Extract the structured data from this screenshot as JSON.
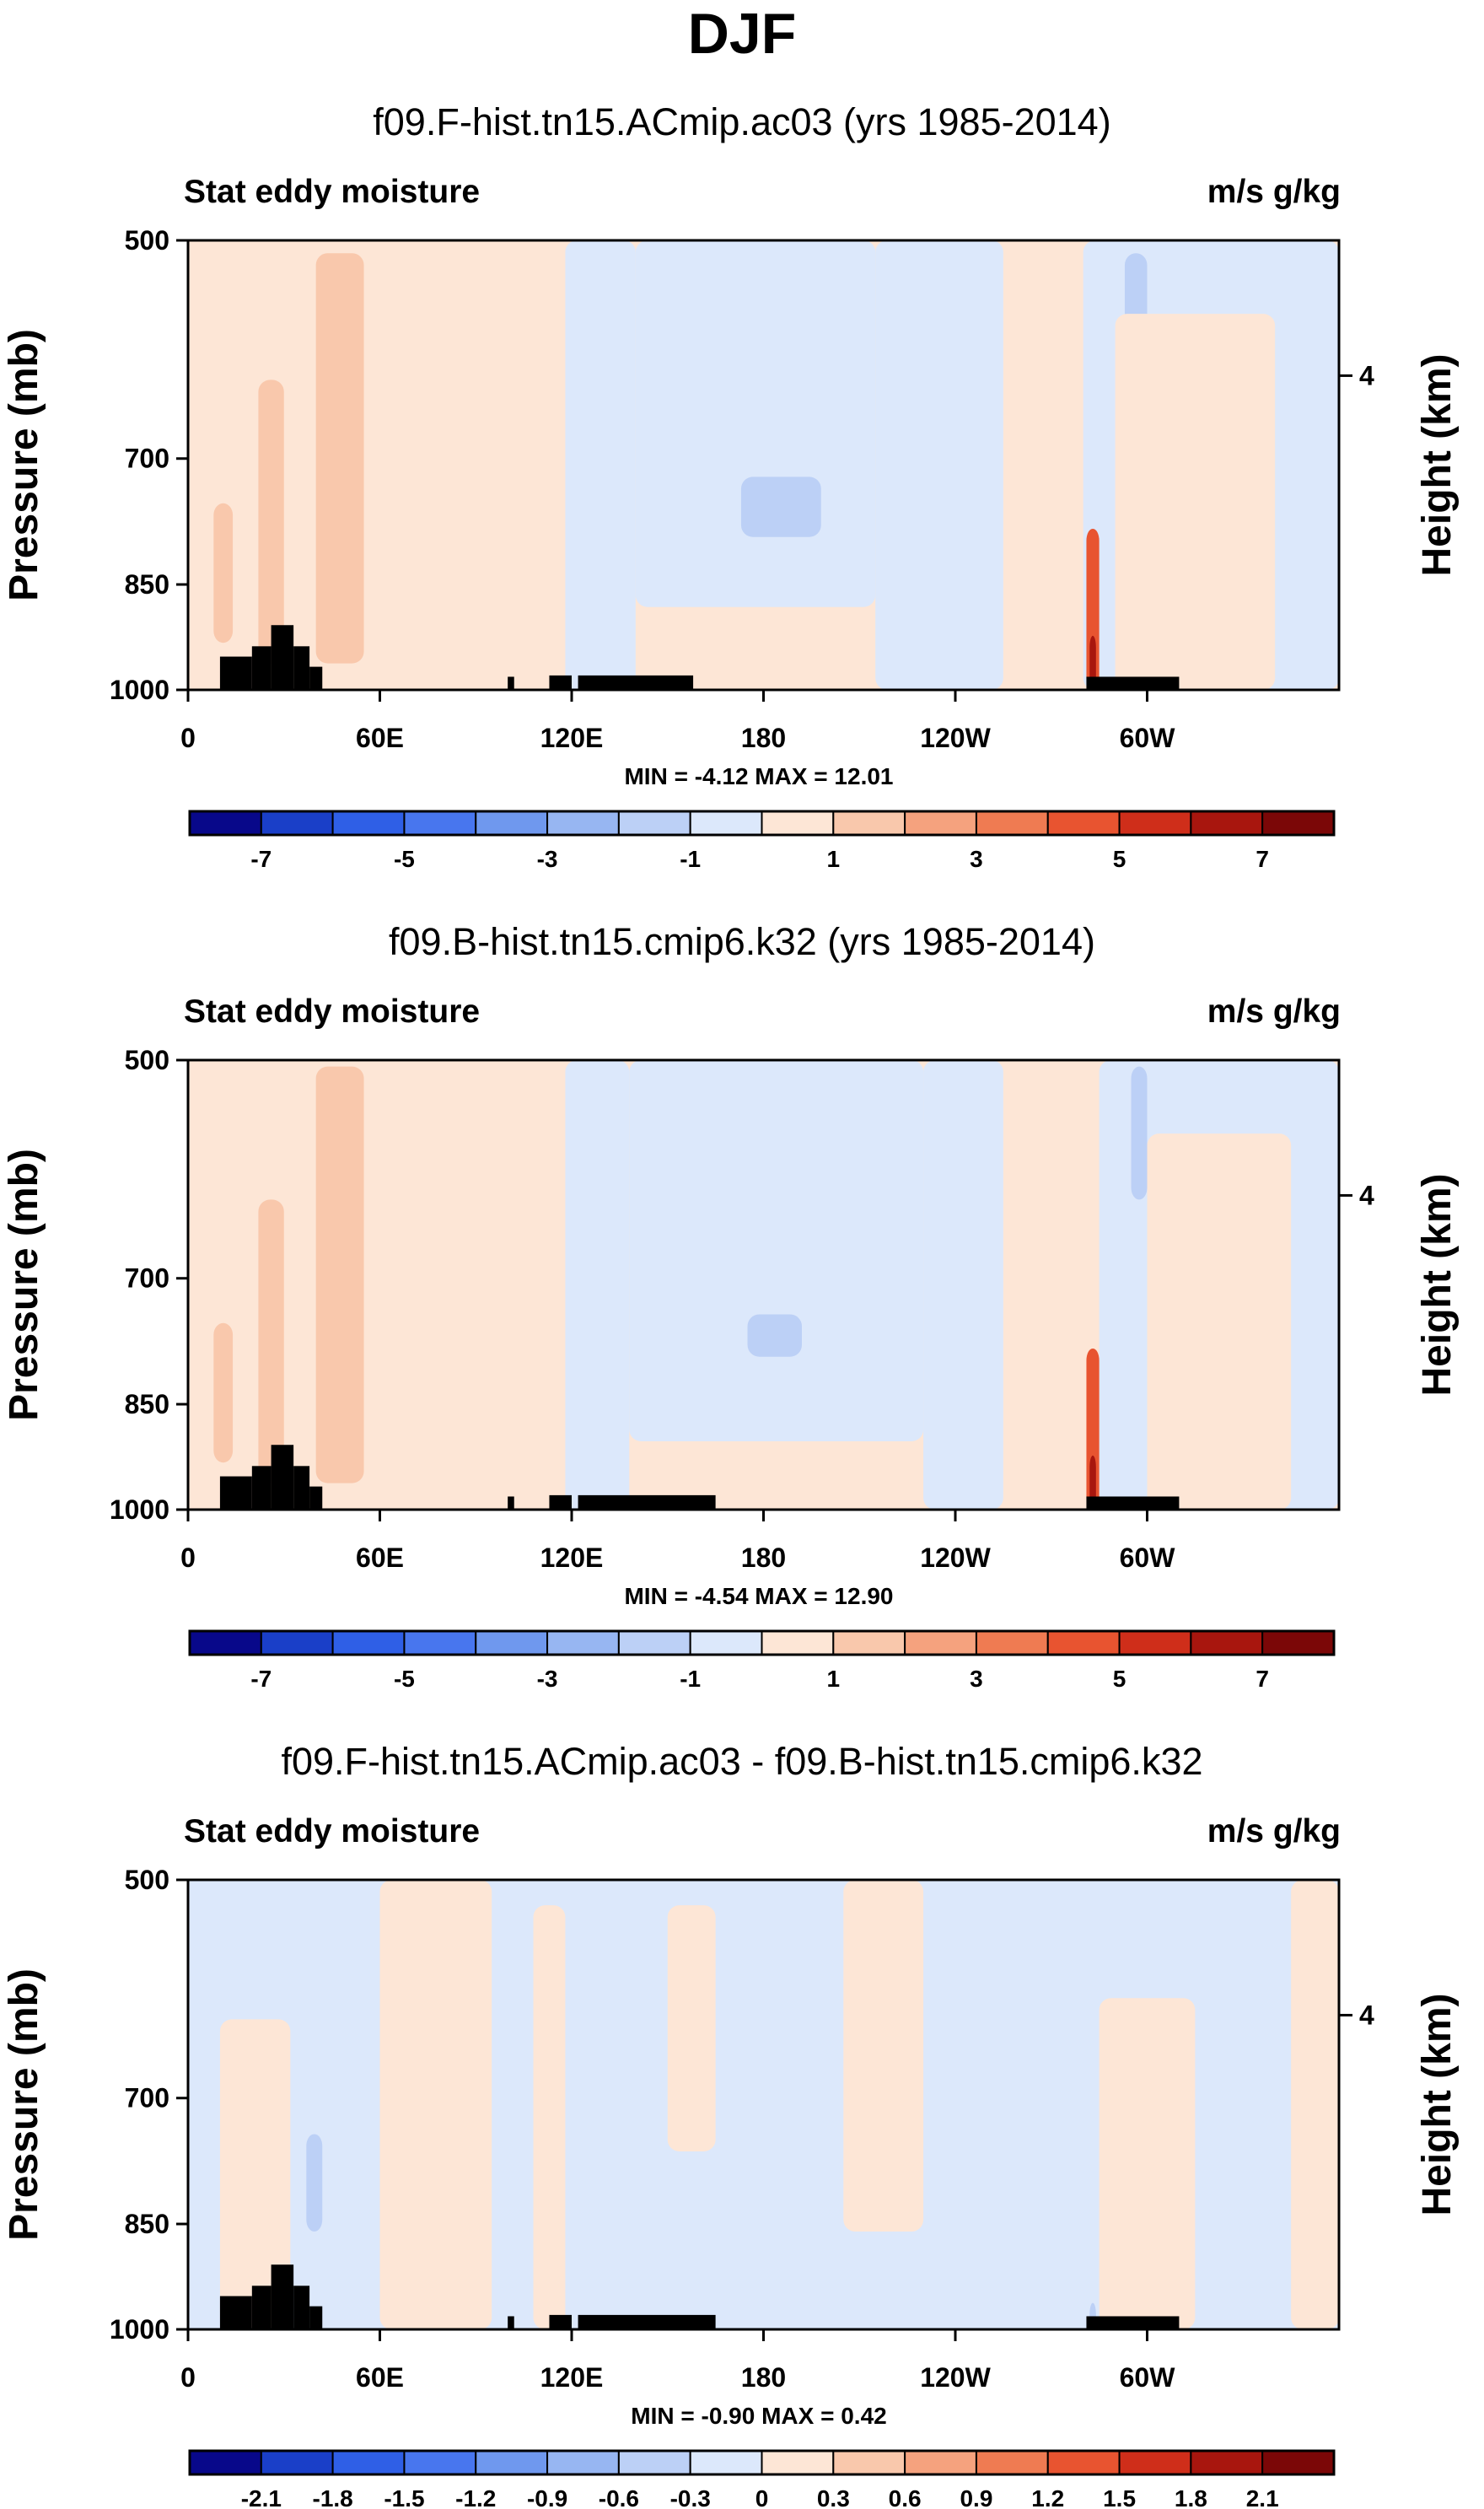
{
  "page": {
    "title": "DJF"
  },
  "palette": {
    "colors": [
      "#08088a",
      "#1a3fc8",
      "#2f5fe6",
      "#4876ee",
      "#6f98ee",
      "#97b6f2",
      "#bcd0f6",
      "#dce8fb",
      "#fde6d6",
      "#f9c8ac",
      "#f5a27e",
      "#ef7b52",
      "#e85430",
      "#cf2e1a",
      "#a8160e",
      "#7b0707"
    ],
    "land": "#000000",
    "axis": "#000000"
  },
  "chart_data": [
    {
      "type": "heatmap",
      "title": "f09.F-hist.tn15.ACmip.ac03 (yrs 1985-2014)",
      "left_label": "Stat eddy moisture",
      "right_label": "m/s g/kg",
      "ylabel": "Pressure (mb)",
      "y2label": "Height (km)",
      "yticks": [
        "500",
        "700",
        "850",
        "1000"
      ],
      "ytick_values": [
        500,
        700,
        850,
        1000
      ],
      "y2ticks": [
        "4"
      ],
      "y2tick_values": [
        616
      ],
      "xticks": [
        "0",
        "60E",
        "120E",
        "180",
        "120W",
        "60W"
      ],
      "xtick_values": [
        0,
        60,
        120,
        180,
        240,
        300
      ],
      "xlim": [
        0,
        360
      ],
      "ylim": [
        1000,
        500
      ],
      "minmax": "MIN =  -4.12   MAX =  12.01",
      "colorbar_labels": [
        "-7",
        "-5",
        "-3",
        "-1",
        "1",
        "3",
        "5",
        "7"
      ],
      "colorbar_levels": [
        -7,
        -6,
        -5,
        -4,
        -3,
        -2,
        -1,
        0,
        1,
        2,
        3,
        4,
        5,
        6,
        7
      ],
      "field": {
        "background": 8,
        "regions": [
          {
            "lon": [
              0,
              118
            ],
            "p": [
              500,
              1000
            ],
            "level": 8
          },
          {
            "lon": [
              118,
              140
            ],
            "p": [
              500,
              1000
            ],
            "level": 7
          },
          {
            "lon": [
              140,
              215
            ],
            "p": [
              500,
              880
            ],
            "level": 7
          },
          {
            "lon": [
              215,
              255
            ],
            "p": [
              500,
              1000
            ],
            "level": 7
          },
          {
            "lon": [
              280,
              360
            ],
            "p": [
              500,
              1000
            ],
            "level": 7
          },
          {
            "lon": [
              40,
              55
            ],
            "p": [
              510,
              960
            ],
            "level": 9
          },
          {
            "lon": [
              22,
              30
            ],
            "p": [
              620,
              960
            ],
            "level": 9
          },
          {
            "lon": [
              8,
              14
            ],
            "p": [
              750,
              930
            ],
            "level": 9
          },
          {
            "lon": [
              173,
              198
            ],
            "p": [
              720,
              790
            ],
            "level": 6
          },
          {
            "lon": [
              293,
              300
            ],
            "p": [
              510,
              640
            ],
            "level": 6
          },
          {
            "lon": [
              281,
              285
            ],
            "p": [
              780,
              1000
            ],
            "level": 12
          },
          {
            "lon": [
              282,
              284
            ],
            "p": [
              920,
              1000
            ],
            "level": 14
          },
          {
            "lon": [
              290,
              340
            ],
            "p": [
              560,
              1000
            ],
            "level": 8
          }
        ],
        "land": [
          {
            "lon": [
              10,
              20
            ],
            "p": [
              950,
              1000
            ]
          },
          {
            "lon": [
              20,
              26
            ],
            "p": [
              935,
              1000
            ]
          },
          {
            "lon": [
              26,
              33
            ],
            "p": [
              905,
              1000
            ]
          },
          {
            "lon": [
              33,
              38
            ],
            "p": [
              935,
              1000
            ]
          },
          {
            "lon": [
              38,
              42
            ],
            "p": [
              965,
              1000
            ]
          },
          {
            "lon": [
              100,
              102
            ],
            "p": [
              980,
              1000
            ]
          },
          {
            "lon": [
              113,
              120
            ],
            "p": [
              978,
              1000
            ]
          },
          {
            "lon": [
              122,
              158
            ],
            "p": [
              978,
              1000
            ]
          },
          {
            "lon": [
              281,
              310
            ],
            "p": [
              980,
              1000
            ]
          }
        ]
      }
    },
    {
      "type": "heatmap",
      "title": "f09.B-hist.tn15.cmip6.k32 (yrs 1985-2014)",
      "left_label": "Stat eddy moisture",
      "right_label": "m/s g/kg",
      "ylabel": "Pressure (mb)",
      "y2label": "Height (km)",
      "yticks": [
        "500",
        "700",
        "850",
        "1000"
      ],
      "ytick_values": [
        500,
        700,
        850,
        1000
      ],
      "y2ticks": [
        "4"
      ],
      "y2tick_values": [
        616
      ],
      "xticks": [
        "0",
        "60E",
        "120E",
        "180",
        "120W",
        "60W"
      ],
      "xtick_values": [
        0,
        60,
        120,
        180,
        240,
        300
      ],
      "xlim": [
        0,
        360
      ],
      "ylim": [
        1000,
        500
      ],
      "minmax": "MIN =  -4.54   MAX =  12.90",
      "colorbar_labels": [
        "-7",
        "-5",
        "-3",
        "-1",
        "1",
        "3",
        "5",
        "7"
      ],
      "colorbar_levels": [
        -7,
        -6,
        -5,
        -4,
        -3,
        -2,
        -1,
        0,
        1,
        2,
        3,
        4,
        5,
        6,
        7
      ],
      "field": {
        "background": 8,
        "regions": [
          {
            "lon": [
              0,
              118
            ],
            "p": [
              500,
              1000
            ],
            "level": 8
          },
          {
            "lon": [
              118,
              138
            ],
            "p": [
              500,
              1000
            ],
            "level": 7
          },
          {
            "lon": [
              138,
              230
            ],
            "p": [
              500,
              900
            ],
            "level": 7
          },
          {
            "lon": [
              230,
              255
            ],
            "p": [
              500,
              1000
            ],
            "level": 7
          },
          {
            "lon": [
              285,
              360
            ],
            "p": [
              500,
              1000
            ],
            "level": 7
          },
          {
            "lon": [
              40,
              55
            ],
            "p": [
              505,
              960
            ],
            "level": 9
          },
          {
            "lon": [
              22,
              30
            ],
            "p": [
              620,
              960
            ],
            "level": 9
          },
          {
            "lon": [
              8,
              14
            ],
            "p": [
              750,
              930
            ],
            "level": 9
          },
          {
            "lon": [
              175,
              192
            ],
            "p": [
              740,
              790
            ],
            "level": 6
          },
          {
            "lon": [
              295,
              300
            ],
            "p": [
              505,
              620
            ],
            "level": 6
          },
          {
            "lon": [
              281,
              285
            ],
            "p": [
              780,
              1000
            ],
            "level": 12
          },
          {
            "lon": [
              282,
              284
            ],
            "p": [
              920,
              1000
            ],
            "level": 14
          },
          {
            "lon": [
              300,
              345
            ],
            "p": [
              560,
              1000
            ],
            "level": 8
          }
        ],
        "land": [
          {
            "lon": [
              10,
              20
            ],
            "p": [
              950,
              1000
            ]
          },
          {
            "lon": [
              20,
              26
            ],
            "p": [
              935,
              1000
            ]
          },
          {
            "lon": [
              26,
              33
            ],
            "p": [
              905,
              1000
            ]
          },
          {
            "lon": [
              33,
              38
            ],
            "p": [
              935,
              1000
            ]
          },
          {
            "lon": [
              38,
              42
            ],
            "p": [
              965,
              1000
            ]
          },
          {
            "lon": [
              100,
              102
            ],
            "p": [
              980,
              1000
            ]
          },
          {
            "lon": [
              113,
              120
            ],
            "p": [
              978,
              1000
            ]
          },
          {
            "lon": [
              122,
              165
            ],
            "p": [
              978,
              1000
            ]
          },
          {
            "lon": [
              281,
              310
            ],
            "p": [
              980,
              1000
            ]
          }
        ]
      }
    },
    {
      "type": "heatmap",
      "title": "f09.F-hist.tn15.ACmip.ac03 - f09.B-hist.tn15.cmip6.k32",
      "left_label": "Stat eddy moisture",
      "right_label": "m/s g/kg",
      "ylabel": "Pressure (mb)",
      "y2label": "Height (km)",
      "yticks": [
        "500",
        "700",
        "850",
        "1000"
      ],
      "ytick_values": [
        500,
        700,
        850,
        1000
      ],
      "y2ticks": [
        "4"
      ],
      "y2tick_values": [
        616
      ],
      "xticks": [
        "0",
        "60E",
        "120E",
        "180",
        "120W",
        "60W"
      ],
      "xtick_values": [
        0,
        60,
        120,
        180,
        240,
        300
      ],
      "xlim": [
        0,
        360
      ],
      "ylim": [
        1000,
        500
      ],
      "minmax": "MIN =  -0.90   MAX =  0.42",
      "colorbar_labels": [
        "-2.1",
        "-1.8",
        "-1.5",
        "-1.2",
        "-0.9",
        "-0.6",
        "-0.3",
        "0",
        "0.3",
        "0.6",
        "0.9",
        "1.2",
        "1.5",
        "1.8",
        "2.1"
      ],
      "colorbar_levels": [
        -2.1,
        -1.8,
        -1.5,
        -1.2,
        -0.9,
        -0.6,
        -0.3,
        0,
        0.3,
        0.6,
        0.9,
        1.2,
        1.5,
        1.8,
        2.1
      ],
      "field": {
        "background": 7,
        "regions": [
          {
            "lon": [
              10,
              32
            ],
            "p": [
              620,
              1000
            ],
            "level": 8
          },
          {
            "lon": [
              60,
              95
            ],
            "p": [
              500,
              1000
            ],
            "level": 8
          },
          {
            "lon": [
              108,
              118
            ],
            "p": [
              520,
              1000
            ],
            "level": 8
          },
          {
            "lon": [
              150,
              165
            ],
            "p": [
              520,
              760
            ],
            "level": 8
          },
          {
            "lon": [
              205,
              230
            ],
            "p": [
              500,
              860
            ],
            "level": 8
          },
          {
            "lon": [
              285,
              315
            ],
            "p": [
              600,
              1000
            ],
            "level": 8
          },
          {
            "lon": [
              345,
              360
            ],
            "p": [
              500,
              1000
            ],
            "level": 8
          },
          {
            "lon": [
              37,
              42
            ],
            "p": [
              740,
              860
            ],
            "level": 6
          },
          {
            "lon": [
              282,
              284
            ],
            "p": [
              960,
              1000
            ],
            "level": 6
          }
        ],
        "land": [
          {
            "lon": [
              10,
              20
            ],
            "p": [
              950,
              1000
            ]
          },
          {
            "lon": [
              20,
              26
            ],
            "p": [
              935,
              1000
            ]
          },
          {
            "lon": [
              26,
              33
            ],
            "p": [
              905,
              1000
            ]
          },
          {
            "lon": [
              33,
              38
            ],
            "p": [
              935,
              1000
            ]
          },
          {
            "lon": [
              38,
              42
            ],
            "p": [
              965,
              1000
            ]
          },
          {
            "lon": [
              100,
              102
            ],
            "p": [
              980,
              1000
            ]
          },
          {
            "lon": [
              113,
              120
            ],
            "p": [
              978,
              1000
            ]
          },
          {
            "lon": [
              122,
              165
            ],
            "p": [
              978,
              1000
            ]
          },
          {
            "lon": [
              281,
              310
            ],
            "p": [
              980,
              1000
            ]
          }
        ]
      }
    }
  ]
}
